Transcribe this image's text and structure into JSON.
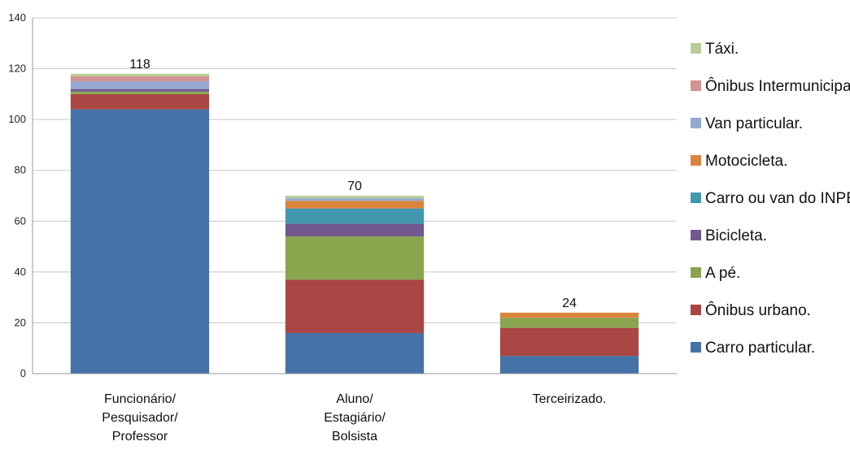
{
  "chart_data": {
    "type": "bar",
    "stacked": true,
    "categories": [
      [
        "Funcionário/",
        "Pesquisador/",
        "Professor"
      ],
      [
        "Aluno/",
        "Estagiário/",
        "Bolsista"
      ],
      [
        "Terceirizado."
      ]
    ],
    "totals": [
      "118",
      "70",
      "24"
    ],
    "ylim": [
      0,
      140
    ],
    "yticks": [
      "0",
      "20",
      "40",
      "60",
      "80",
      "100",
      "120",
      "140"
    ],
    "grid": true,
    "legend_position": "right",
    "series": [
      {
        "name": "Carro particular.",
        "color": "#4572A7",
        "values": [
          104,
          16,
          7
        ]
      },
      {
        "name": "Ônibus urbano.",
        "color": "#AA4643",
        "values": [
          6,
          21,
          11
        ]
      },
      {
        "name": "A pé.",
        "color": "#89A54E",
        "values": [
          1,
          17,
          4
        ]
      },
      {
        "name": "Bicicleta.",
        "color": "#71588F",
        "values": [
          1,
          5,
          0
        ]
      },
      {
        "name": "Carro ou van do INPE.",
        "color": "#4198AF",
        "values": [
          0,
          6,
          0
        ]
      },
      {
        "name": "Motocicleta.",
        "color": "#DB843D",
        "values": [
          0,
          3,
          2
        ]
      },
      {
        "name": "Van particular.",
        "color": "#93A9CF",
        "values": [
          3,
          1,
          0
        ]
      },
      {
        "name": "Ônibus Intermunicipal",
        "color": "#D19392",
        "values": [
          2,
          0,
          0
        ]
      },
      {
        "name": "Táxi.",
        "color": "#B9CD96",
        "values": [
          1,
          1,
          0
        ]
      }
    ]
  }
}
